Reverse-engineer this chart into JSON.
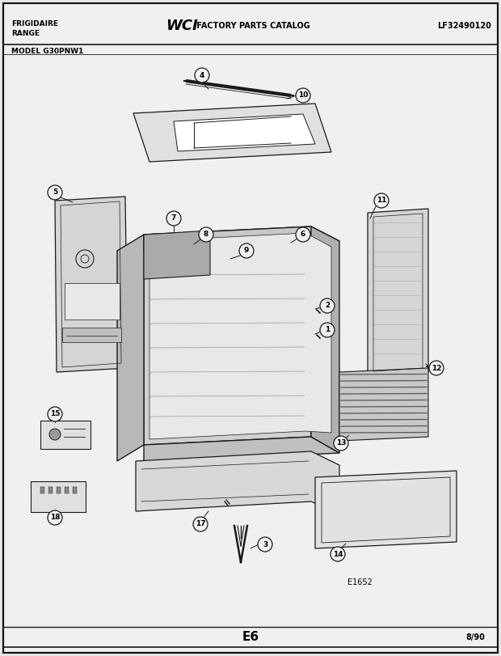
{
  "bg_color": "#e8e8e8",
  "paper_color": "#f0f0f0",
  "line_color": "#1a1a1a",
  "border_color": "#111111",
  "title_left1": "FRIGIDAIRE",
  "title_left2": "RANGE",
  "title_center": " FACTORY PARTS CATALOG",
  "title_right": "LF32490120",
  "model": "MODEL G30PNW1",
  "page_label": "E6",
  "page_date": "8/90",
  "diagram_ref": "E1652",
  "wci_font_size": 13,
  "header_font_size": 6,
  "label_font_size": 6.5
}
